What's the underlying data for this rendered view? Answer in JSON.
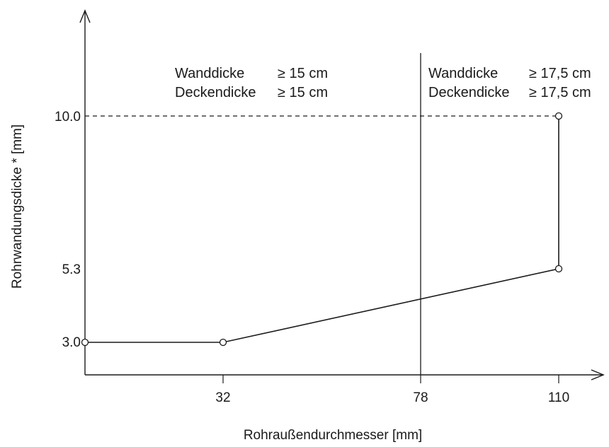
{
  "chart_data": {
    "type": "line",
    "xlabel": "Rohraußendurchmesser [mm]",
    "ylabel": "Rohrwandungsdicke * [mm]",
    "x_ticks": [
      "32",
      "78",
      "110"
    ],
    "y_ticks": [
      "3.0",
      "5.3",
      "10.0"
    ],
    "series": [
      {
        "x": [
          0,
          32,
          110,
          110
        ],
        "y": [
          3.0,
          3.0,
          5.3,
          10.0
        ]
      }
    ],
    "reference_lines": {
      "vertical_x": 78,
      "dashed_horizontal_y": 10.0
    },
    "regions": [
      {
        "line1_label": "Wanddicke",
        "line1_value": "≥ 15 cm",
        "line2_label": "Deckendicke",
        "line2_value": "≥ 15 cm"
      },
      {
        "line1_label": "Wanddicke",
        "line1_value": "≥ 17,5 cm",
        "line2_label": "Deckendicke",
        "line2_value": "≥ 17,5 cm"
      }
    ]
  }
}
